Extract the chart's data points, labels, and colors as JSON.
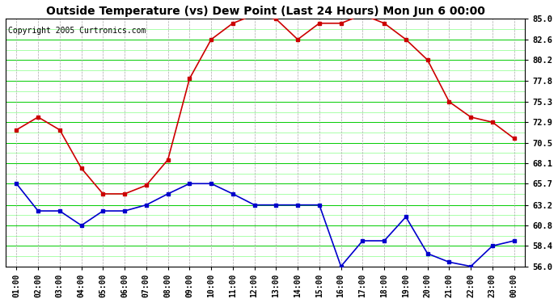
{
  "title": "Outside Temperature (vs) Dew Point (Last 24 Hours) Mon Jun 6 00:00",
  "copyright": "Copyright 2005 Curtronics.com",
  "hours": [
    "01:00",
    "02:00",
    "03:00",
    "04:00",
    "05:00",
    "06:00",
    "07:00",
    "08:00",
    "09:00",
    "10:00",
    "11:00",
    "12:00",
    "13:00",
    "14:00",
    "15:00",
    "16:00",
    "17:00",
    "18:00",
    "19:00",
    "20:00",
    "21:00",
    "22:00",
    "23:00",
    "00:00"
  ],
  "temp": [
    72.0,
    73.5,
    72.0,
    67.5,
    64.5,
    64.5,
    65.5,
    68.5,
    78.0,
    82.6,
    84.5,
    85.5,
    85.0,
    82.6,
    84.5,
    84.5,
    85.5,
    84.5,
    82.6,
    80.2,
    75.3,
    73.5,
    72.9,
    71.0
  ],
  "dew": [
    65.7,
    62.5,
    62.5,
    60.8,
    62.5,
    62.5,
    63.2,
    64.5,
    65.7,
    65.7,
    64.5,
    63.2,
    63.2,
    63.2,
    63.2,
    56.0,
    59.0,
    59.0,
    61.8,
    57.5,
    56.5,
    56.0,
    58.4,
    59.0
  ],
  "ylim": [
    56.0,
    85.0
  ],
  "yticks": [
    56.0,
    58.4,
    60.8,
    63.2,
    65.7,
    68.1,
    70.5,
    72.9,
    75.3,
    77.8,
    80.2,
    82.6,
    85.0
  ],
  "plot_bg": "#ffffff",
  "grid_color_solid": "#00cc00",
  "grid_color_minor": "#88ff88",
  "grid_color_vert": "#aaaaaa",
  "temp_color": "#cc0000",
  "dew_color": "#0000cc",
  "title_color": "#000000",
  "title_fontsize": 10,
  "copyright_fontsize": 7
}
